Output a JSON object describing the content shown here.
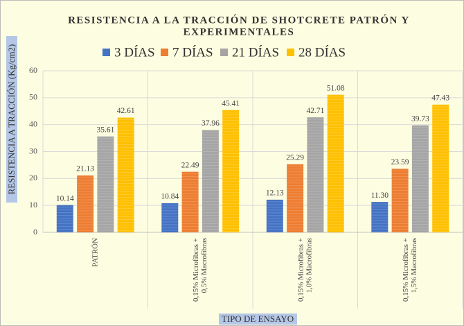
{
  "chart_data": {
    "type": "bar",
    "title": [
      "RESISTENCIA A LA TRACCIÓN DE SHOTCRETE PATRÓN Y",
      "EXPERIMENTALES"
    ],
    "y_label": "RESISTENCIA A TRACCIÓN (Kg/cm2)",
    "x_label": "TIPO DE ENSAYO",
    "categories": [
      [
        "PATRÓN"
      ],
      [
        "0,15% Microfibras +",
        "0,5% Macrofibras"
      ],
      [
        "0,15% Microfibras +",
        "1,0% Macrofibras"
      ],
      [
        "0,15% Microfibras +",
        "1,5% Macrofibras"
      ]
    ],
    "series": [
      {
        "name": "3 DÍAS",
        "color": "#4472c4",
        "values": [
          10.14,
          10.84,
          12.13,
          11.3
        ],
        "value_labels": [
          "10.14",
          "10.84",
          "12.13",
          "11.30"
        ]
      },
      {
        "name": "7 DÍAS",
        "color": "#ed7d31",
        "values": [
          21.13,
          22.49,
          25.29,
          23.59
        ],
        "value_labels": [
          "21.13",
          "22.49",
          "25.29",
          "23.59"
        ]
      },
      {
        "name": "21 DÍAS",
        "color": "#a5a5a5",
        "values": [
          35.61,
          37.96,
          42.71,
          39.73
        ],
        "value_labels": [
          "35.61",
          "37.96",
          "42.71",
          "39.73"
        ]
      },
      {
        "name": "28 DÍAS",
        "color": "#ffc000",
        "values": [
          42.61,
          45.41,
          51.08,
          47.43
        ],
        "value_labels": [
          "42.61",
          "45.41",
          "51.08",
          "47.43"
        ]
      }
    ],
    "ylim": [
      0,
      60
    ],
    "yticks": [
      0,
      10,
      20,
      30,
      40,
      50,
      60
    ],
    "grid": true,
    "legend": "top"
  }
}
